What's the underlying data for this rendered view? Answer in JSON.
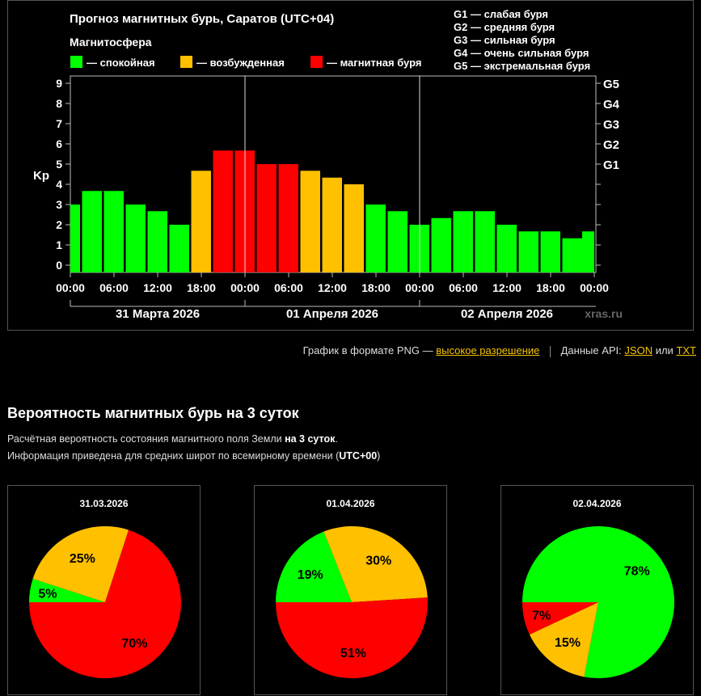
{
  "forecast": {
    "title": "Прогноз магнитных бурь, Саратов (UTC+04)",
    "legend_title": "Магнитосфера",
    "legend": [
      {
        "label": "— спокойная",
        "color": "#00ff00"
      },
      {
        "label": "— возбужденная",
        "color": "#ffc000"
      },
      {
        "label": "— магнитная буря",
        "color": "#ff0000"
      }
    ],
    "g_scale": [
      "G1 — слабая буря",
      "G2 — средняя буря",
      "G3 — сильная буря",
      "G4 — очень сильная буря",
      "G5 — экстремальная буря"
    ],
    "watermark": "xras.ru"
  },
  "chart_data": [
    {
      "type": "bar",
      "title": "Прогноз магнитных бурь, Саратов (UTC+04)",
      "ylabel": "Kp",
      "ylim": [
        0,
        9
      ],
      "yticks": [
        "0",
        "1",
        "2",
        "3",
        "4",
        "5",
        "6",
        "7",
        "8",
        "9"
      ],
      "right_ticks": [
        {
          "value": 5,
          "label": "G1"
        },
        {
          "value": 6,
          "label": "G2"
        },
        {
          "value": 7,
          "label": "G3"
        },
        {
          "value": 8,
          "label": "G4"
        },
        {
          "value": 9,
          "label": "G5"
        }
      ],
      "xticks": [
        "00:00",
        "06:00",
        "12:00",
        "18:00",
        "00:00",
        "06:00",
        "12:00",
        "18:00",
        "00:00",
        "06:00",
        "12:00",
        "18:00",
        "00:00"
      ],
      "day_labels": [
        "31 Марта 2026",
        "01 Апреля 2026",
        "02 Апреля 2026"
      ],
      "bar_interval_hours": 3,
      "values": [
        3.0,
        3.67,
        3.67,
        3.0,
        2.67,
        2.0,
        4.67,
        5.67,
        5.67,
        5.0,
        5.0,
        4.67,
        4.33,
        4.0,
        3.0,
        2.67,
        2.0,
        2.33,
        2.67,
        2.67,
        2.0,
        1.67,
        1.67,
        1.33,
        1.67
      ],
      "colors": [
        "#00ff00",
        "#00ff00",
        "#00ff00",
        "#00ff00",
        "#00ff00",
        "#00ff00",
        "#ffc000",
        "#ff0000",
        "#ff0000",
        "#ff0000",
        "#ff0000",
        "#ffc000",
        "#ffc000",
        "#ffc000",
        "#00ff00",
        "#00ff00",
        "#00ff00",
        "#00ff00",
        "#00ff00",
        "#00ff00",
        "#00ff00",
        "#00ff00",
        "#00ff00",
        "#00ff00",
        "#00ff00"
      ]
    },
    {
      "type": "pie",
      "title": "31.03.2026",
      "slices": [
        {
          "label": "5%",
          "value": 5,
          "color": "#00ff00"
        },
        {
          "label": "25%",
          "value": 25,
          "color": "#ffc000"
        },
        {
          "label": "70%",
          "value": 70,
          "color": "#ff0000"
        }
      ]
    },
    {
      "type": "pie",
      "title": "01.04.2026",
      "slices": [
        {
          "label": "19%",
          "value": 19,
          "color": "#00ff00"
        },
        {
          "label": "30%",
          "value": 30,
          "color": "#ffc000"
        },
        {
          "label": "51%",
          "value": 51,
          "color": "#ff0000"
        }
      ]
    },
    {
      "type": "pie",
      "title": "02.04.2026",
      "slices": [
        {
          "label": "78%",
          "value": 78,
          "color": "#00ff00"
        },
        {
          "label": "15%",
          "value": 15,
          "color": "#ffc000"
        },
        {
          "label": "7%",
          "value": 7,
          "color": "#ff0000"
        }
      ]
    }
  ],
  "links": {
    "png_prefix": "График в формате PNG —",
    "png_link": "высокое разрешение",
    "api_prefix": "Данные API:",
    "json_link": "JSON",
    "or": "или",
    "txt_link": "TXT"
  },
  "probability": {
    "title": "Вероятность магнитных бурь на 3 суток",
    "line1_prefix": "Расчётная вероятность состояния магнитного поля Земли",
    "line1_bold": "на 3 суток",
    "line1_suffix": ".",
    "line2_prefix": "Информация приведена для средних широт по всемирному времени (",
    "line2_bold": "UTC+00",
    "line2_suffix": ")"
  }
}
